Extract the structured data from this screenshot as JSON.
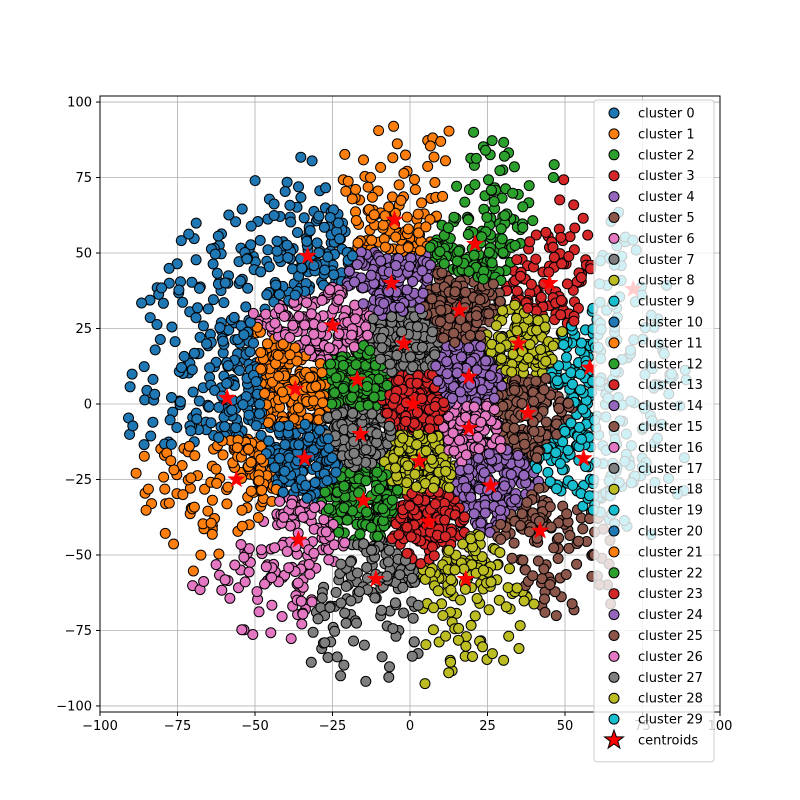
{
  "chart_data": {
    "type": "scatter",
    "title": "",
    "xlabel": "",
    "ylabel": "",
    "xlim": [
      -100,
      100
    ],
    "ylim": [
      -102,
      102
    ],
    "grid": true,
    "legend_position": "top-right",
    "x_ticks": [
      -100,
      -75,
      -50,
      -25,
      0,
      25,
      50,
      75,
      100
    ],
    "y_ticks": [
      -100,
      -75,
      -50,
      -25,
      0,
      25,
      50,
      75,
      100
    ],
    "x_tick_labels": [
      "−100",
      "−75",
      "−50",
      "−25",
      "0",
      "25",
      "50",
      "75",
      "100"
    ],
    "y_tick_labels": [
      "−100",
      "−75",
      "−50",
      "−25",
      "0",
      "25",
      "50",
      "75",
      "100"
    ],
    "series": [
      {
        "name": "cluster 0",
        "color": "#1f77b4"
      },
      {
        "name": "cluster 1",
        "color": "#ff7f0e"
      },
      {
        "name": "cluster 2",
        "color": "#2ca02c"
      },
      {
        "name": "cluster 3",
        "color": "#d62728"
      },
      {
        "name": "cluster 4",
        "color": "#9467bd"
      },
      {
        "name": "cluster 5",
        "color": "#8c564b"
      },
      {
        "name": "cluster 6",
        "color": "#e377c2"
      },
      {
        "name": "cluster 7",
        "color": "#7f7f7f"
      },
      {
        "name": "cluster 8",
        "color": "#bcbd22"
      },
      {
        "name": "cluster 9",
        "color": "#17becf"
      },
      {
        "name": "cluster 10",
        "color": "#1f77b4"
      },
      {
        "name": "cluster 11",
        "color": "#ff7f0e"
      },
      {
        "name": "cluster 12",
        "color": "#2ca02c"
      },
      {
        "name": "cluster 13",
        "color": "#d62728"
      },
      {
        "name": "cluster 14",
        "color": "#9467bd"
      },
      {
        "name": "cluster 15",
        "color": "#8c564b"
      },
      {
        "name": "cluster 16",
        "color": "#e377c2"
      },
      {
        "name": "cluster 17",
        "color": "#7f7f7f"
      },
      {
        "name": "cluster 18",
        "color": "#bcbd22"
      },
      {
        "name": "cluster 19",
        "color": "#17becf"
      },
      {
        "name": "cluster 20",
        "color": "#1f77b4"
      },
      {
        "name": "cluster 21",
        "color": "#ff7f0e"
      },
      {
        "name": "cluster 22",
        "color": "#2ca02c"
      },
      {
        "name": "cluster 23",
        "color": "#d62728"
      },
      {
        "name": "cluster 24",
        "color": "#9467bd"
      },
      {
        "name": "cluster 25",
        "color": "#8c564b"
      },
      {
        "name": "cluster 26",
        "color": "#e377c2"
      },
      {
        "name": "cluster 27",
        "color": "#7f7f7f"
      },
      {
        "name": "cluster 28",
        "color": "#bcbd22"
      },
      {
        "name": "cluster 29",
        "color": "#17becf"
      }
    ],
    "centroids": {
      "name": "centroids",
      "color": "#ff0000",
      "points": [
        [
          -33,
          49
        ],
        [
          -5,
          61
        ],
        [
          21,
          53
        ],
        [
          45,
          40
        ],
        [
          -6,
          40
        ],
        [
          16,
          31
        ],
        [
          -25,
          26
        ],
        [
          -2,
          20
        ],
        [
          35,
          20
        ],
        [
          58,
          12
        ],
        [
          -59,
          2
        ],
        [
          -37,
          5
        ],
        [
          -17,
          8
        ],
        [
          1,
          0
        ],
        [
          19,
          9
        ],
        [
          38,
          -3
        ],
        [
          19,
          -8
        ],
        [
          -16,
          -10
        ],
        [
          3,
          -19
        ],
        [
          56,
          -18
        ],
        [
          -34,
          -18
        ],
        [
          -56,
          -25
        ],
        [
          -15,
          -32
        ],
        [
          6,
          -39
        ],
        [
          26,
          -27
        ],
        [
          42,
          -42
        ],
        [
          -36,
          -45
        ],
        [
          -11,
          -58
        ],
        [
          18,
          -58
        ],
        [
          72,
          38
        ]
      ]
    }
  }
}
